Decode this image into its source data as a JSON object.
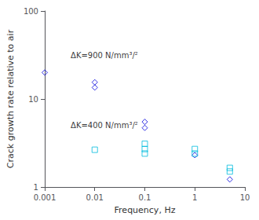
{
  "chart_data": {
    "type": "scatter",
    "xlabel": "Frequency, Hz",
    "ylabel": "Crack growth rate relative to air",
    "log": true,
    "grid": false,
    "xlim": [
      0.001,
      10
    ],
    "ylim": [
      1,
      100
    ],
    "xticks": [
      0.001,
      0.01,
      0.1,
      1,
      10
    ],
    "yticks": [
      1,
      10,
      100
    ],
    "series": [
      {
        "color": "#0000dd",
        "marker": "diamond",
        "x": [
          0.001,
          0.01,
          0.01,
          0.1,
          0.1,
          1.0,
          5.0
        ],
        "values": [
          20.0,
          15.5,
          13.5,
          5.5,
          4.7,
          2.3,
          1.22
        ]
      },
      {
        "color": "#00bbdd",
        "marker": "square",
        "x": [
          0.01,
          0.1,
          0.1,
          0.1,
          1.0,
          1.0,
          5.0,
          5.0
        ],
        "values": [
          2.65,
          3.1,
          2.7,
          2.4,
          2.7,
          2.4,
          1.65,
          1.5
        ]
      }
    ],
    "annotations": [
      {
        "text": "ΔK=900 N/mm³/²",
        "x": 0.0033,
        "y": 28.0
      },
      {
        "text": "ΔK=400 N/mm³/²",
        "x": 0.0033,
        "y": 4.5
      }
    ]
  }
}
